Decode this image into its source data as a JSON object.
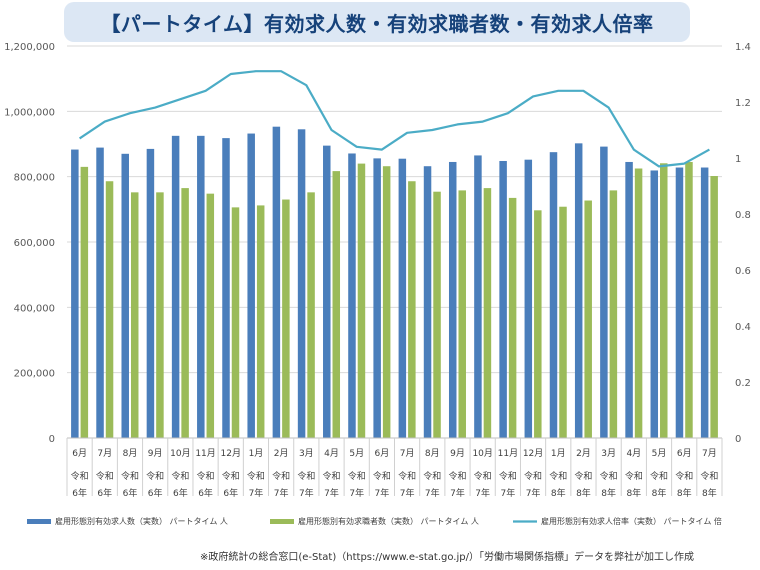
{
  "title": "【パートタイム】有効求人数・有効求職者数・有効求人倍率",
  "source_note": "※政府統計の総合窓口(e-Stat)（https://www.e-stat.go.jp/）「労働市場関係指標」データを弊社が加工し作成",
  "colors": {
    "bar1": "#4a7ebb",
    "bar2": "#9bbb59",
    "line": "#4bacc6",
    "grid": "#d9d9d9",
    "title_bg": "#dce7f4",
    "title_text": "#16427a"
  },
  "chart_data": {
    "type": "bar",
    "secondary_type": "line",
    "categories": [
      [
        "6月",
        "令和",
        "6年"
      ],
      [
        "7月",
        "令和",
        "6年"
      ],
      [
        "8月",
        "令和",
        "6年"
      ],
      [
        "9月",
        "令和",
        "6年"
      ],
      [
        "10月",
        "令和",
        "6年"
      ],
      [
        "11月",
        "令和",
        "6年"
      ],
      [
        "12月",
        "令和",
        "6年"
      ],
      [
        "1月",
        "令和",
        "7年"
      ],
      [
        "2月",
        "令和",
        "7年"
      ],
      [
        "3月",
        "令和",
        "7年"
      ],
      [
        "4月",
        "令和",
        "7年"
      ],
      [
        "5月",
        "令和",
        "7年"
      ],
      [
        "6月",
        "令和",
        "7年"
      ],
      [
        "7月",
        "令和",
        "7年"
      ],
      [
        "8月",
        "令和",
        "7年"
      ],
      [
        "9月",
        "令和",
        "7年"
      ],
      [
        "10月",
        "令和",
        "7年"
      ],
      [
        "11月",
        "令和",
        "7年"
      ],
      [
        "12月",
        "令和",
        "7年"
      ],
      [
        "1月",
        "令和",
        "8年"
      ],
      [
        "2月",
        "令和",
        "8年"
      ],
      [
        "3月",
        "令和",
        "8年"
      ],
      [
        "4月",
        "令和",
        "8年"
      ],
      [
        "5月",
        "令和",
        "8年"
      ],
      [
        "6月",
        "令和",
        "8年"
      ],
      [
        "7月",
        "令和",
        "8年"
      ]
    ],
    "series": [
      {
        "name": "雇用形態別有効求人数（実数） パートタイム 人",
        "axis": "left",
        "values": [
          883000,
          889000,
          870000,
          885000,
          925000,
          925000,
          918000,
          932000,
          953000,
          945000,
          895000,
          871000,
          856000,
          855000,
          832000,
          845000,
          865000,
          848000,
          852000,
          875000,
          902000,
          892000,
          845000,
          819000,
          828000,
          828000
        ]
      },
      {
        "name": "雇用形態別有効求職者数（実数） パートタイム 人",
        "axis": "left",
        "values": [
          830000,
          786000,
          752000,
          752000,
          765000,
          748000,
          706000,
          712000,
          730000,
          752000,
          817000,
          840000,
          832000,
          786000,
          754000,
          758000,
          765000,
          735000,
          697000,
          708000,
          727000,
          758000,
          825000,
          841000,
          845000,
          802000
        ]
      },
      {
        "name": "雇用形態別有効求人倍率（実数） パートタイム 倍",
        "axis": "right",
        "values": [
          1.07,
          1.13,
          1.16,
          1.18,
          1.21,
          1.24,
          1.3,
          1.31,
          1.31,
          1.26,
          1.1,
          1.04,
          1.03,
          1.09,
          1.1,
          1.12,
          1.13,
          1.16,
          1.22,
          1.24,
          1.24,
          1.18,
          1.03,
          0.97,
          0.98,
          1.03
        ]
      }
    ],
    "y_left": {
      "min": 0,
      "max": 1200000,
      "ticks": [
        "0",
        "200,000",
        "400,000",
        "600,000",
        "800,000",
        "1,000,000",
        "1,200,000"
      ]
    },
    "y_right": {
      "min": 0,
      "max": 1.4,
      "ticks": [
        "0",
        "0.2",
        "0.4",
        "0.6",
        "0.8",
        "1",
        "1.2",
        "1.4"
      ]
    },
    "grid": true,
    "legend_position": "bottom"
  }
}
